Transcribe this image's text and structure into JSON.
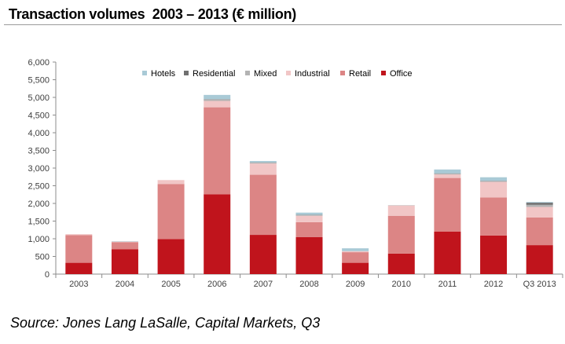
{
  "title": "Transaction volumes  2003 – 2013 (€ million)",
  "source": "Source: Jones Lang LaSalle, Capital Markets, Q3",
  "chart_data": {
    "type": "bar",
    "stacked": true,
    "categories": [
      "2003",
      "2004",
      "2005",
      "2006",
      "2007",
      "2008",
      "2009",
      "2010",
      "2011",
      "2012",
      "Q3 2013"
    ],
    "ylim": [
      0,
      6000
    ],
    "yticks": [
      "0",
      "500",
      "1,000",
      "1,500",
      "2,000",
      "2,500",
      "3,000",
      "3,500",
      "4,000",
      "4,500",
      "5,000",
      "5,500",
      "6,000"
    ],
    "legend_position": "top",
    "grid": false,
    "series": [
      {
        "name": "Office",
        "color": "#c0141c",
        "values": [
          320,
          700,
          990,
          2260,
          1110,
          1050,
          320,
          580,
          1200,
          1090,
          820
        ]
      },
      {
        "name": "Retail",
        "color": "#dc8585",
        "values": [
          780,
          200,
          1560,
          2460,
          1700,
          420,
          300,
          1070,
          1520,
          1080,
          780
        ]
      },
      {
        "name": "Industrial",
        "color": "#f1c6c6",
        "values": [
          30,
          20,
          110,
          180,
          320,
          180,
          30,
          290,
          100,
          440,
          300
        ]
      },
      {
        "name": "Mixed",
        "color": "#b3b3b3",
        "values": [
          0,
          0,
          0,
          40,
          20,
          20,
          0,
          10,
          20,
          20,
          60
        ]
      },
      {
        "name": "Residential",
        "color": "#707070",
        "values": [
          0,
          0,
          0,
          10,
          10,
          10,
          0,
          0,
          10,
          10,
          60
        ]
      },
      {
        "name": "Hotels",
        "color": "#a9cad6",
        "values": [
          0,
          10,
          0,
          120,
          40,
          60,
          80,
          0,
          110,
          100,
          20
        ]
      }
    ]
  }
}
